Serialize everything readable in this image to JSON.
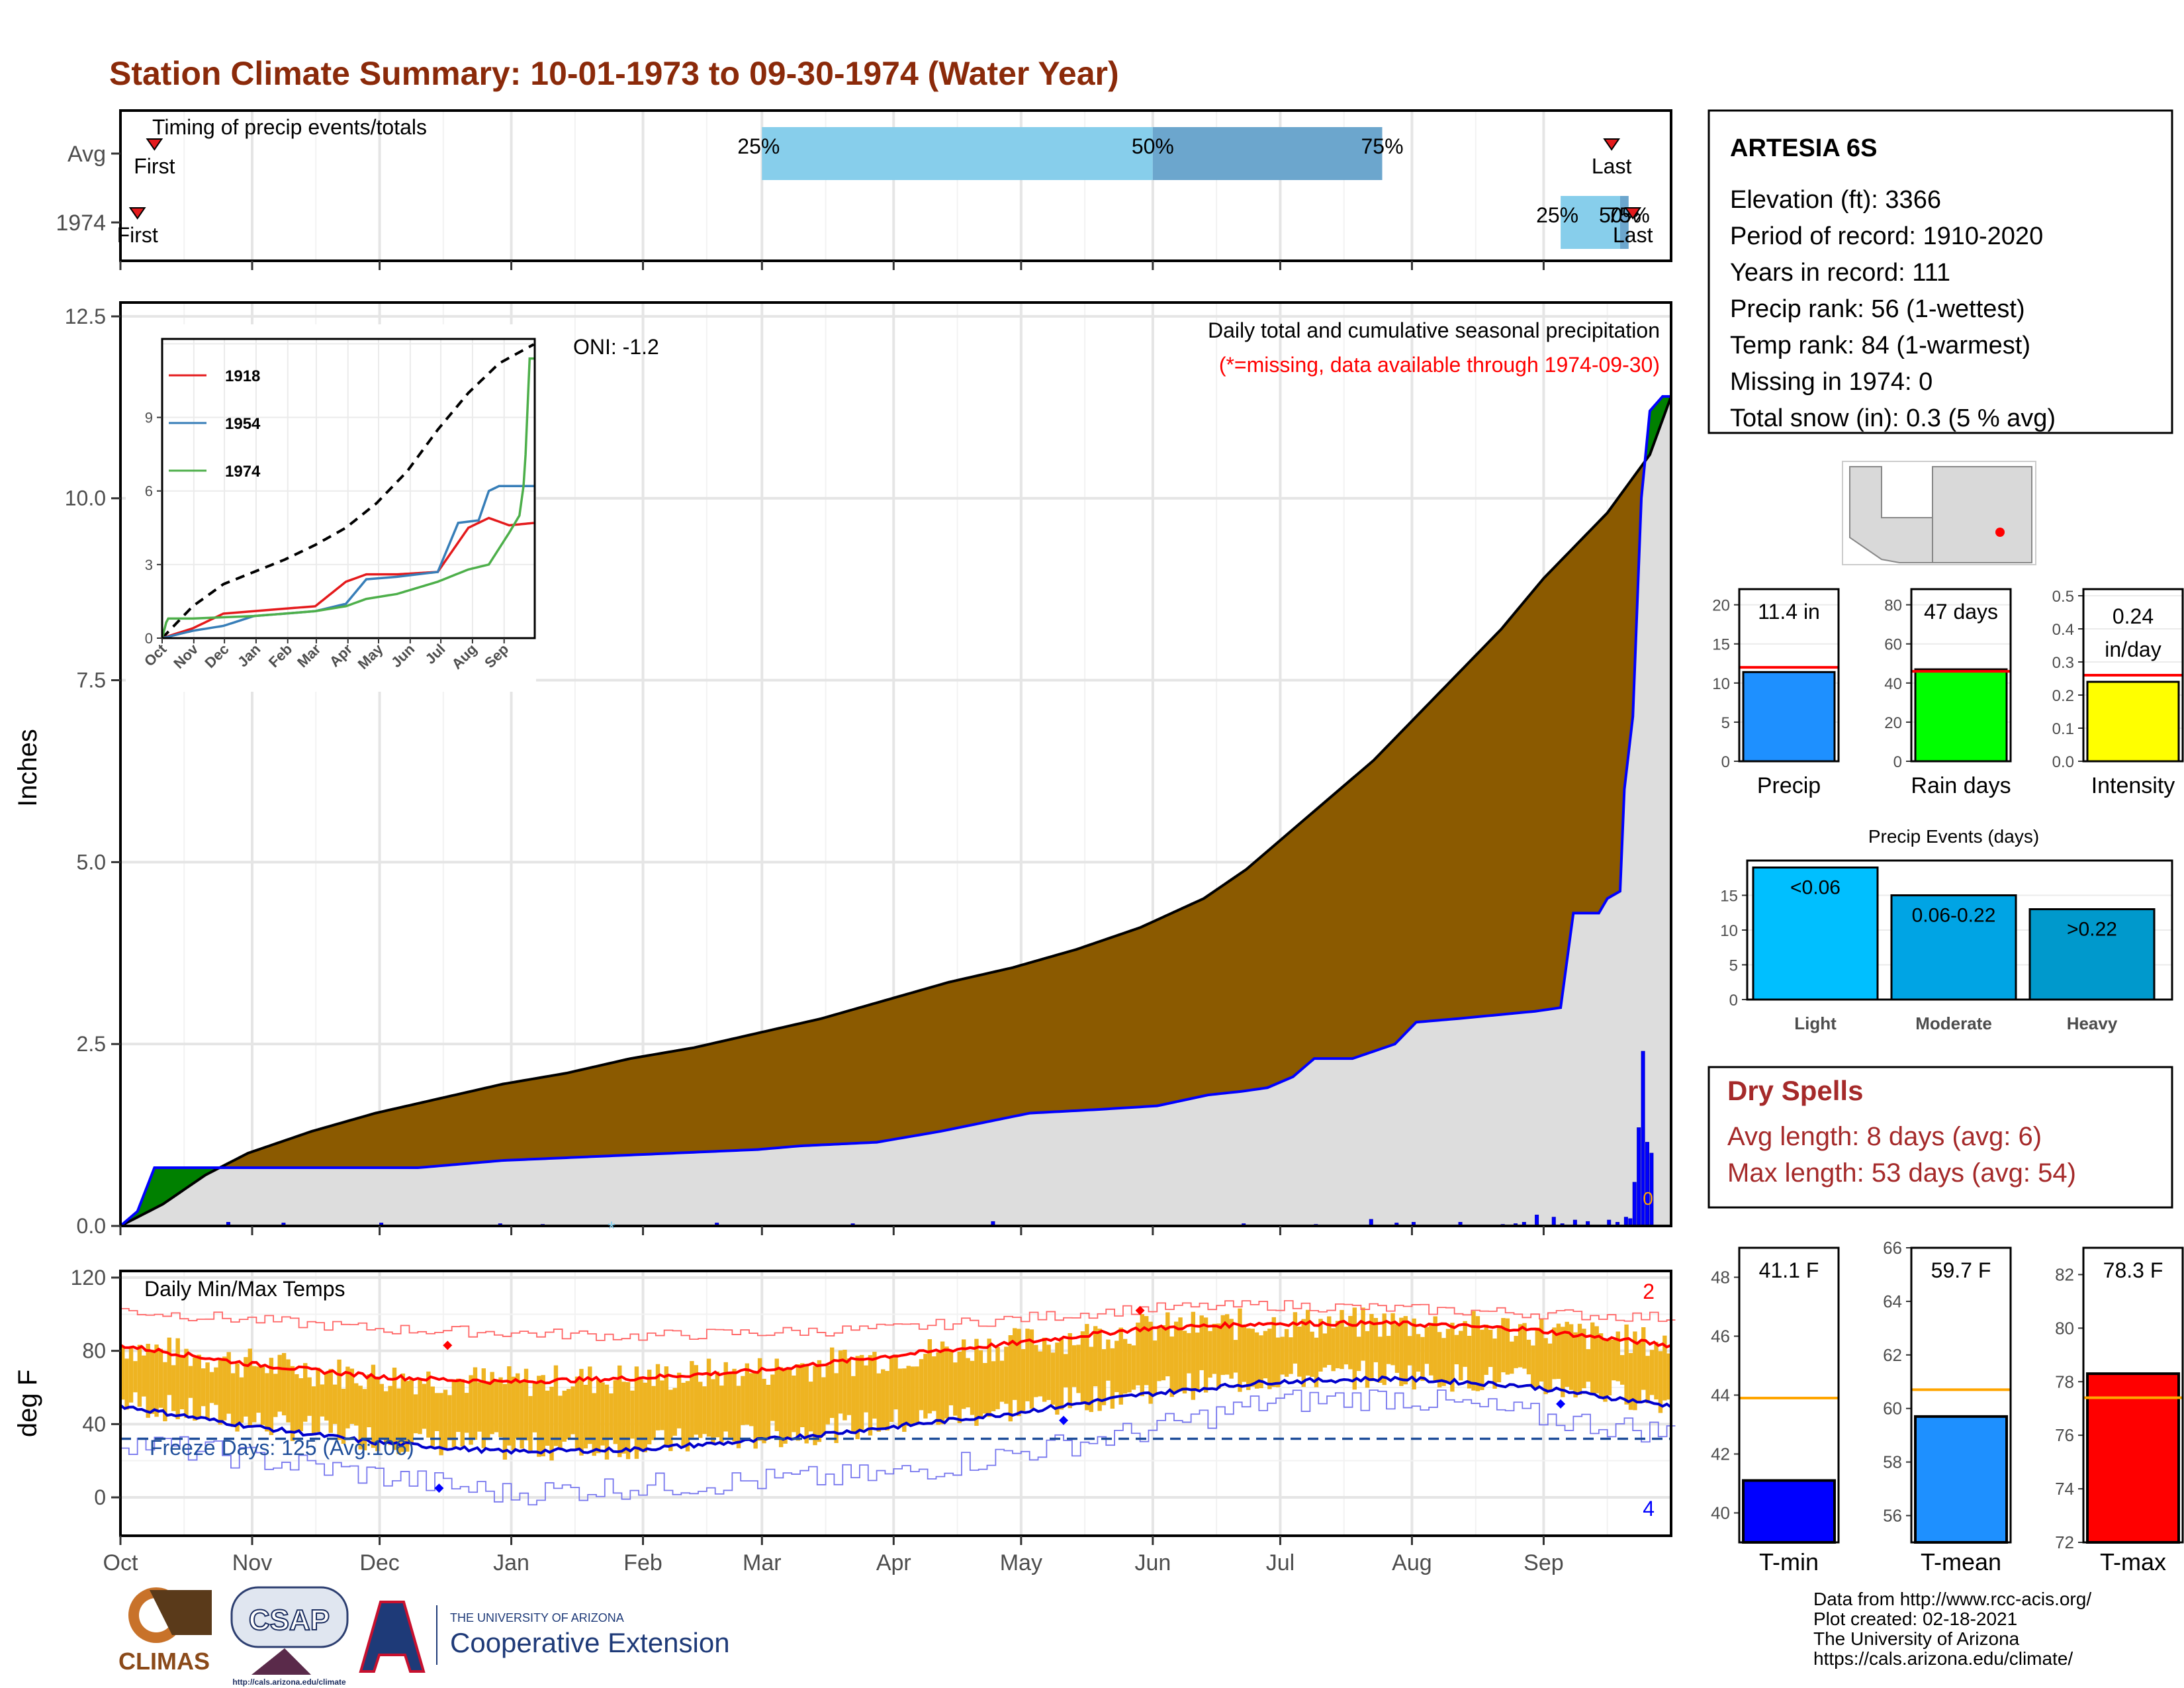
{
  "title": "Station Climate Summary: 10-01-1973 to 09-30-1974 (Water Year)",
  "months": [
    "Oct",
    "Nov",
    "Dec",
    "Jan",
    "Feb",
    "Mar",
    "Apr",
    "May",
    "Jun",
    "Jul",
    "Aug",
    "Sep"
  ],
  "timing": {
    "title": "Timing of precip events/totals",
    "rows": [
      "Avg",
      "1974"
    ],
    "first_label": "First",
    "last_label": "Last",
    "avg": {
      "first_day": 8,
      "p25_day": 151,
      "p50_day": 243,
      "p75_day": 297,
      "last_day": 351,
      "label_25": "25%",
      "label_50": "50%",
      "label_75": "75%"
    },
    "year": {
      "first_day": 4,
      "p25_day": 339,
      "p50_day": 353,
      "p75_day": 355,
      "last_day": 356,
      "label_25": "25%",
      "label_50": "50%",
      "label_75": "75%"
    }
  },
  "main": {
    "ylabel": "Inches",
    "yticks": [
      "0.0",
      "2.5",
      "5.0",
      "7.5",
      "10.0",
      "12.5"
    ],
    "oni": "ONI: -1.2",
    "title": "Daily total and cumulative seasonal precipitation",
    "subtitle": "(*=missing, data available through 1974-09-30)",
    "snow_marker": "0",
    "missing_marker": "*",
    "colors": {
      "above": "#8b5a00",
      "below": "#008000",
      "base": "#dddddd",
      "line": "#0000ff",
      "title": "#8b2a0a",
      "subtitle": "#ff0000"
    }
  },
  "inset": {
    "xticks": [
      "Oct",
      "Nov",
      "Dec",
      "Jan",
      "Feb",
      "Mar",
      "Apr",
      "May",
      "Jun",
      "Jul",
      "Aug",
      "Sep"
    ],
    "yticks": [
      "0",
      "3",
      "6",
      "9"
    ],
    "legend": [
      {
        "name": "1918",
        "color": "#e41a1c"
      },
      {
        "name": "1954",
        "color": "#377eb8"
      },
      {
        "name": "1974",
        "color": "#4daf4a"
      }
    ]
  },
  "temps": {
    "title": "Daily Min/Max Temps",
    "ylabel": "deg F",
    "yticks": [
      "0",
      "40",
      "80",
      "120"
    ],
    "freeze_label": "Freeze Days: 125 (Avg:106)",
    "record_high_count": "2",
    "record_low_count": "4"
  },
  "station": {
    "name": "ARTESIA 6S",
    "lines": [
      "Elevation (ft): 3366",
      "Period of record: 1910-2020",
      "Years in record: 111",
      "Precip rank: 56 (1-wettest)",
      "Temp rank: 84 (1-warmest)",
      "Missing in 1974: 0",
      "Total snow (in): 0.3 (5 % avg)"
    ]
  },
  "summary_bars": [
    {
      "label": "Precip",
      "value_label": "11.4 in",
      "value": 11.4,
      "avg": 12.0,
      "max": 22,
      "ticks": [
        "0",
        "5",
        "10",
        "15",
        "20"
      ],
      "tickvals": [
        0,
        5,
        10,
        15,
        20
      ],
      "color": "#1e90ff"
    },
    {
      "label": "Rain days",
      "value_label": "47 days",
      "value": 47,
      "avg": 46,
      "max": 88,
      "ticks": [
        "0",
        "20",
        "40",
        "60",
        "80"
      ],
      "tickvals": [
        0,
        20,
        40,
        60,
        80
      ],
      "color": "#00ff00"
    },
    {
      "label": "Intensity",
      "value_label": "0.24 in/day",
      "value_line1": "0.24",
      "value_line2": "in/day",
      "value": 0.24,
      "avg": 0.26,
      "max": 0.52,
      "ticks": [
        "0.0",
        "0.1",
        "0.2",
        "0.3",
        "0.4",
        "0.5"
      ],
      "tickvals": [
        0,
        0.1,
        0.2,
        0.3,
        0.4,
        0.5
      ],
      "color": "#ffff00"
    }
  ],
  "events": {
    "title": "Precip Events (days)",
    "ticks": [
      "0",
      "5",
      "10",
      "15"
    ],
    "bars": [
      {
        "cat": "Light",
        "label": "<0.06",
        "value": 19,
        "color": "#00bfff"
      },
      {
        "cat": "Moderate",
        "label": "0.06-0.22",
        "value": 15,
        "color": "#00a4e4"
      },
      {
        "cat": "Heavy",
        "label": ">0.22",
        "value": 13,
        "color": "#0099cc"
      }
    ]
  },
  "dry_spells": {
    "title": "Dry Spells",
    "lines": [
      "Avg length: 8 days (avg: 6)",
      "Max length: 53 days (avg: 54)"
    ]
  },
  "temp_bars": [
    {
      "label": "T-min",
      "value_label": "41.1 F",
      "value": 41.1,
      "avg": 43.9,
      "min": 39,
      "max": 49,
      "ticks": [
        "40",
        "42",
        "44",
        "46",
        "48"
      ],
      "tickvals": [
        40,
        42,
        44,
        46,
        48
      ],
      "color": "#0000ff"
    },
    {
      "label": "T-mean",
      "value_label": "59.7 F",
      "value": 59.7,
      "avg": 60.7,
      "min": 55,
      "max": 66,
      "ticks": [
        "56",
        "58",
        "60",
        "62",
        "64",
        "66"
      ],
      "tickvals": [
        56,
        58,
        60,
        62,
        64,
        66
      ],
      "color": "#1e90ff"
    },
    {
      "label": "T-max",
      "value_label": "78.3 F",
      "value": 78.3,
      "avg": 77.4,
      "min": 72,
      "max": 83,
      "ticks": [
        "72",
        "74",
        "76",
        "78",
        "80",
        "82"
      ],
      "tickvals": [
        72,
        74,
        76,
        78,
        80,
        82
      ],
      "color": "#ff0000"
    }
  ],
  "credits": [
    "Data from http://www.rcc-acis.org/",
    "Plot created: 02-18-2021",
    "The University of Arizona",
    "https://cals.arizona.edu/climate/"
  ],
  "logos": {
    "climas": "CLIMAS",
    "csap": "CSAP",
    "csap_url": "http://cals.arizona.edu/climate",
    "ua_top": "THE UNIVERSITY OF ARIZONA",
    "ua_main": "Cooperative Extension"
  },
  "chart_data": [
    {
      "type": "area",
      "title": "Daily total and cumulative seasonal precipitation",
      "ylabel": "Inches",
      "ylim": [
        0,
        12.5
      ],
      "x_range_days": [
        0,
        365
      ],
      "series": [
        {
          "name": "1974",
          "x": [
            0,
            4,
            8,
            12,
            20,
            30,
            40,
            50,
            60,
            70,
            80,
            90,
            110,
            130,
            150,
            160,
            178,
            193,
            214,
            230,
            244,
            256,
            264,
            270,
            276,
            281,
            290,
            300,
            305,
            315,
            324,
            333,
            339,
            342,
            348,
            350,
            353,
            354,
            356,
            358,
            360,
            363,
            365
          ],
          "y": [
            0,
            0.2,
            0.8,
            0.8,
            0.8,
            0.8,
            0.8,
            0.8,
            0.8,
            0.8,
            0.85,
            0.9,
            0.95,
            1.0,
            1.05,
            1.1,
            1.15,
            1.3,
            1.55,
            1.6,
            1.65,
            1.8,
            1.85,
            1.9,
            2.05,
            2.3,
            2.3,
            2.5,
            2.8,
            2.85,
            2.9,
            2.95,
            3.0,
            4.3,
            4.3,
            4.5,
            4.6,
            6.0,
            7.0,
            10.0,
            11.2,
            11.4,
            11.4
          ]
        },
        {
          "name": "Avg",
          "x": [
            0,
            10,
            20,
            30,
            45,
            60,
            75,
            90,
            105,
            120,
            135,
            150,
            165,
            180,
            195,
            210,
            225,
            240,
            255,
            265,
            275,
            285,
            295,
            305,
            315,
            325,
            335,
            345,
            350,
            355,
            360,
            365
          ],
          "y": [
            0,
            0.3,
            0.7,
            1.0,
            1.3,
            1.55,
            1.75,
            1.95,
            2.1,
            2.3,
            2.45,
            2.65,
            2.85,
            3.1,
            3.35,
            3.55,
            3.8,
            4.1,
            4.5,
            4.9,
            5.4,
            5.9,
            6.4,
            7.0,
            7.6,
            8.2,
            8.9,
            9.5,
            9.8,
            10.2,
            10.6,
            11.4
          ]
        }
      ],
      "daily_bars": {
        "x": [
          25,
          38,
          61,
          89,
          99,
          140,
          172,
          205,
          264,
          281,
          294,
          300,
          304,
          315,
          325,
          328,
          330,
          333,
          337,
          339,
          342,
          345,
          350,
          352,
          354,
          355,
          356,
          357,
          358,
          359,
          360
        ],
        "y": [
          0.05,
          0.04,
          0.04,
          0.03,
          0.02,
          0.04,
          0.03,
          0.06,
          0.03,
          0.02,
          0.09,
          0.04,
          0.05,
          0.05,
          0.02,
          0.03,
          0.05,
          0.15,
          0.12,
          0.03,
          0.08,
          0.06,
          0.08,
          0.05,
          0.12,
          0.1,
          0.6,
          1.35,
          2.4,
          1.15,
          1.0
        ]
      }
    },
    {
      "type": "line",
      "title": "",
      "xticks": [
        "Oct",
        "Nov",
        "Dec",
        "Jan",
        "Feb",
        "Mar",
        "Apr",
        "May",
        "Jun",
        "Jul",
        "Aug",
        "Sep"
      ],
      "ylim": [
        0,
        12
      ],
      "series": [
        {
          "name": "Avg",
          "x": [
            0,
            30,
            60,
            90,
            120,
            150,
            180,
            210,
            240,
            270,
            300,
            330,
            365
          ],
          "y": [
            0,
            1.3,
            2.2,
            2.7,
            3.2,
            3.8,
            4.5,
            5.5,
            6.8,
            8.5,
            10.0,
            11.2,
            12.0
          ]
        },
        {
          "name": "1918",
          "x": [
            0,
            30,
            60,
            90,
            120,
            150,
            180,
            200,
            230,
            270,
            300,
            320,
            340,
            365
          ],
          "y": [
            0,
            0.4,
            1.0,
            1.1,
            1.2,
            1.3,
            2.3,
            2.6,
            2.6,
            2.7,
            4.5,
            4.9,
            4.6,
            4.7
          ]
        },
        {
          "name": "1954",
          "x": [
            0,
            30,
            60,
            90,
            120,
            150,
            180,
            200,
            230,
            270,
            290,
            310,
            320,
            330,
            365
          ],
          "y": [
            0,
            0.3,
            0.5,
            0.9,
            1.0,
            1.1,
            1.4,
            2.4,
            2.5,
            2.7,
            4.7,
            4.8,
            6.0,
            6.2,
            6.2
          ]
        },
        {
          "name": "1974",
          "x": [
            0,
            5,
            30,
            60,
            90,
            120,
            150,
            180,
            200,
            230,
            270,
            300,
            320,
            340,
            350,
            355,
            360,
            365
          ],
          "y": [
            0,
            0.8,
            0.8,
            0.85,
            0.9,
            1.0,
            1.1,
            1.3,
            1.6,
            1.8,
            2.3,
            2.8,
            3.0,
            4.3,
            5.0,
            6.5,
            11.4,
            11.4
          ]
        }
      ]
    },
    {
      "type": "line",
      "title": "Daily Min/Max Temps",
      "ylabel": "deg F",
      "ylim": [
        -20,
        120
      ],
      "series": [
        {
          "name": "Avg max",
          "x": [
            0,
            30,
            60,
            90,
            120,
            150,
            180,
            210,
            240,
            270,
            300,
            330,
            365
          ],
          "y": [
            83,
            73,
            66,
            63,
            65,
            69,
            77,
            84,
            92,
            95,
            95,
            92,
            83
          ]
        },
        {
          "name": "Avg min",
          "x": [
            0,
            30,
            60,
            90,
            120,
            150,
            180,
            210,
            240,
            270,
            300,
            330,
            365
          ],
          "y": [
            50,
            39,
            30,
            25,
            26,
            31,
            38,
            46,
            56,
            63,
            65,
            61,
            50
          ]
        },
        {
          "name": "Record high",
          "x": [
            0,
            60,
            120,
            180,
            240,
            270,
            300,
            365
          ],
          "y": [
            102,
            92,
            88,
            92,
            103,
            105,
            103,
            98
          ]
        },
        {
          "name": "Record low",
          "x": [
            0,
            60,
            90,
            120,
            180,
            240,
            270,
            300,
            340,
            365
          ],
          "y": [
            31,
            12,
            2,
            6,
            12,
            36,
            52,
            55,
            42,
            35
          ]
        }
      ],
      "freeze_threshold": 32
    },
    {
      "type": "bar",
      "title": "",
      "categories": [
        "Precip",
        "Rain days",
        "Intensity"
      ],
      "values": [
        11.4,
        47,
        0.24
      ],
      "averages": [
        12.0,
        46,
        0.26
      ]
    },
    {
      "type": "bar",
      "title": "Precip Events (days)",
      "categories": [
        "Light",
        "Moderate",
        "Heavy"
      ],
      "values": [
        19,
        15,
        13
      ]
    },
    {
      "type": "bar",
      "title": "",
      "categories": [
        "T-min",
        "T-mean",
        "T-max"
      ],
      "values": [
        41.1,
        59.7,
        78.3
      ],
      "averages": [
        43.9,
        60.7,
        77.4
      ]
    }
  ]
}
